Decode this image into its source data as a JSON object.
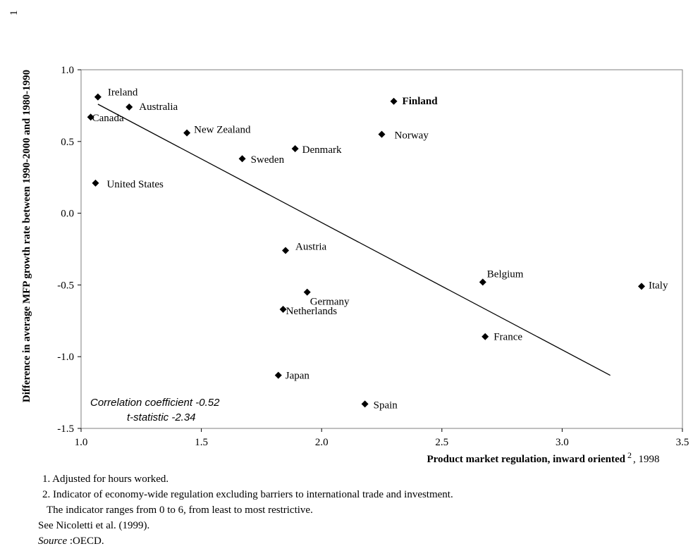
{
  "chart_data": {
    "type": "scatter",
    "xlabel": "Product market regulation, inward oriented",
    "xlabel_suffix_sup": "2",
    "xlabel_year": ", 1998",
    "ylabel": "Difference in average MFP growth rate between 1990-2000 and 1980-1990",
    "ylabel_sup": "1",
    "xlim": [
      1.0,
      3.5
    ],
    "ylim": [
      -1.5,
      1.0
    ],
    "xticks": [
      "1.0",
      "1.5",
      "2.0",
      "2.5",
      "3.0",
      "3.5"
    ],
    "yticks": [
      "1.0",
      "0.5",
      "0.0",
      "-0.5",
      "-1.0",
      "-1.5"
    ],
    "points": [
      {
        "label": "Ireland",
        "x": 1.07,
        "y": 0.81
      },
      {
        "label": "Australia",
        "x": 1.2,
        "y": 0.74
      },
      {
        "label": "Canada",
        "x": 1.04,
        "y": 0.67
      },
      {
        "label": "New Zealand",
        "x": 1.44,
        "y": 0.56
      },
      {
        "label": "Sweden",
        "x": 1.67,
        "y": 0.38
      },
      {
        "label": "Denmark",
        "x": 1.89,
        "y": 0.45
      },
      {
        "label": "Finland",
        "x": 2.3,
        "y": 0.78,
        "bold": true
      },
      {
        "label": "Norway",
        "x": 2.25,
        "y": 0.55
      },
      {
        "label": "United States",
        "x": 1.06,
        "y": 0.21
      },
      {
        "label": "Austria",
        "x": 1.85,
        "y": -0.26
      },
      {
        "label": "Belgium",
        "x": 2.67,
        "y": -0.48
      },
      {
        "label": "Italy",
        "x": 3.33,
        "y": -0.51
      },
      {
        "label": "Germany",
        "x": 1.94,
        "y": -0.55
      },
      {
        "label": "Netherlands",
        "x": 1.84,
        "y": -0.67
      },
      {
        "label": "France",
        "x": 2.68,
        "y": -0.86
      },
      {
        "label": "Japan",
        "x": 1.82,
        "y": -1.13
      },
      {
        "label": "Spain",
        "x": 2.18,
        "y": -1.33
      }
    ],
    "trendline": {
      "x1": 1.07,
      "y1": 0.76,
      "x2": 3.2,
      "y2": -1.13
    },
    "annotations": [
      "Correlation coefficient -0.52",
      "t-statistic -2.34"
    ],
    "grid": false,
    "legend": "none",
    "marker_color": "#000000"
  },
  "notes": {
    "n1": "1. Adjusted for hours worked.",
    "n2": "2. Indicator of economy-wide regulation excluding barriers to international trade and investment.",
    "n2b": "The indicator ranges from 0 to 6, from least to most restrictive.",
    "see": "See Nicoletti et al. (1999).",
    "source_label": "Source",
    "source_text": " :OECD."
  }
}
